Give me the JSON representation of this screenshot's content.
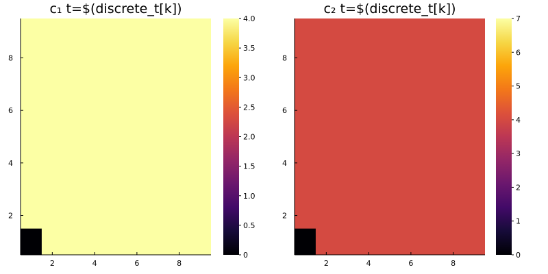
{
  "chart_data": [
    {
      "type": "heatmap",
      "title": "c₁ t=$(discrete_t[k])",
      "xlabel": "",
      "ylabel": "",
      "xlim": [
        0.5,
        9.5
      ],
      "ylim": [
        0.5,
        9.5
      ],
      "x_ticks": [
        "2",
        "4",
        "6",
        "8"
      ],
      "y_ticks": [
        "2",
        "4",
        "6",
        "8"
      ],
      "grid": false,
      "colormap": "inferno",
      "colorbar": {
        "range": [
          0,
          4
        ],
        "ticks": [
          "0",
          "0.5",
          "1.0",
          "1.5",
          "2.0",
          "2.5",
          "3.0",
          "3.5",
          "4.0"
        ]
      },
      "background_value": 4,
      "cells": [
        {
          "x": 1,
          "y": 1,
          "value": 0
        }
      ]
    },
    {
      "type": "heatmap",
      "title": "c₂ t=$(discrete_t[k])",
      "xlabel": "",
      "ylabel": "",
      "xlim": [
        0.5,
        9.5
      ],
      "ylim": [
        0.5,
        9.5
      ],
      "x_ticks": [
        "2",
        "4",
        "6",
        "8"
      ],
      "y_ticks": [
        "2",
        "4",
        "6",
        "8"
      ],
      "grid": false,
      "colormap": "inferno",
      "colorbar": {
        "range": [
          0,
          7
        ],
        "ticks": [
          "0",
          "1",
          "2",
          "3",
          "4",
          "5",
          "6",
          "7"
        ]
      },
      "background_value": 4,
      "cells": [
        {
          "x": 1,
          "y": 1,
          "value": 0
        }
      ]
    }
  ]
}
